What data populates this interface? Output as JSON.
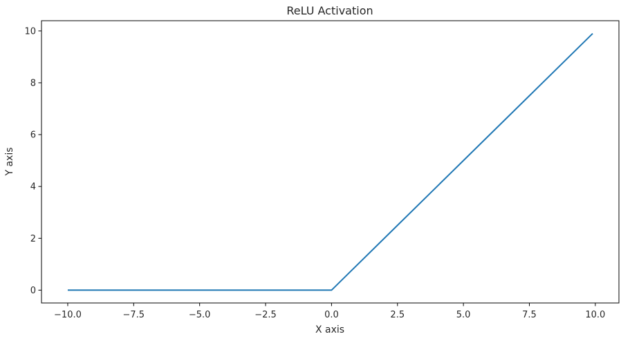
{
  "chart_data": {
    "type": "line",
    "title": "ReLU Activation",
    "xlabel": "X axis",
    "ylabel": "Y axis",
    "xlim": [
      -10.995,
      10.895
    ],
    "ylim": [
      -0.495,
      10.395
    ],
    "grid": false,
    "x_ticks": [
      -10.0,
      -7.5,
      -5.0,
      -2.5,
      0.0,
      2.5,
      5.0,
      7.5,
      10.0
    ],
    "x_tick_labels": [
      "−10.0",
      "−7.5",
      "−5.0",
      "−2.5",
      "0.0",
      "2.5",
      "5.0",
      "7.5",
      "10.0"
    ],
    "y_ticks": [
      0,
      2,
      4,
      6,
      8,
      10
    ],
    "y_tick_labels": [
      "0",
      "2",
      "4",
      "6",
      "8",
      "10"
    ],
    "series": [
      {
        "color": "#1f77b4",
        "x": [
          -10.0,
          -7.5,
          -5.0,
          -2.5,
          0.0,
          2.5,
          5.0,
          7.5,
          9.9
        ],
        "y": [
          0.0,
          0.0,
          0.0,
          0.0,
          0.0,
          2.5,
          5.0,
          7.5,
          9.9
        ]
      }
    ]
  }
}
